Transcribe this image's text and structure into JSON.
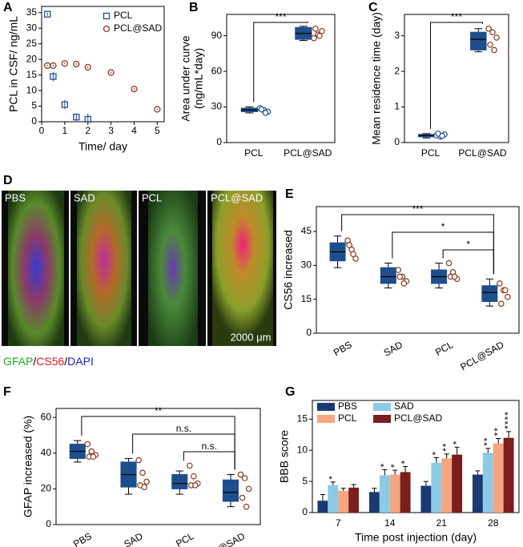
{
  "chart_data": [
    {
      "type": "scatter",
      "panel_label": "A",
      "xlabel": "Time/ day",
      "ylabel": "PCL in CSF/ ng/mL",
      "xlim": [
        0,
        5.3
      ],
      "ylim": [
        0,
        37
      ],
      "xticks": [
        0,
        1,
        2,
        3,
        4,
        5
      ],
      "yticks": [
        0,
        5,
        10,
        15,
        20,
        25,
        30,
        35
      ],
      "legend": "upper right",
      "series": [
        {
          "name": "PCL",
          "color": "#1f4e8c",
          "marker": "square",
          "x": [
            0.25,
            0.5,
            1,
            1.5,
            2
          ],
          "values": [
            34.5,
            14.5,
            5.5,
            1.5,
            0.8
          ],
          "errors": [
            0.5,
            1.5,
            1.5,
            1.2,
            1.8
          ]
        },
        {
          "name": "PCL@SAD",
          "color": "#8b3a1e",
          "marker": "circle",
          "x": [
            0.25,
            0.5,
            1,
            1.5,
            2,
            3,
            4,
            5
          ],
          "values": [
            18,
            18,
            18.7,
            18.5,
            17.5,
            15.8,
            10.5,
            4
          ],
          "errors": [
            0.3,
            0.3,
            0.3,
            0.3,
            0.3,
            0.3,
            0.3,
            0.3
          ]
        }
      ]
    },
    {
      "type": "box",
      "panel_label": "B",
      "ylabel": [
        "Area under curve",
        "(ng/mL*day)"
      ],
      "categories": [
        "PCL",
        "PCL@SAD"
      ],
      "ylim": [
        0,
        108
      ],
      "yticks": [
        0,
        30,
        60,
        90
      ],
      "color": "#1f4e8c",
      "boxes": [
        {
          "q1": 26,
          "median": 27.5,
          "q3": 29,
          "whislo": 25,
          "whishi": 30,
          "points": [
            29,
            27.5,
            26,
            28,
            25
          ],
          "point_color": "#1f4e8c"
        },
        {
          "q1": 87,
          "median": 92,
          "q3": 97,
          "whislo": 86,
          "whishi": 98,
          "points": [
            88,
            91,
            94,
            96,
            90
          ],
          "point_color": "#8b3a1e"
        }
      ],
      "significance": [
        {
          "pair": [
            "PCL",
            "PCL@SAD"
          ],
          "label": "***"
        }
      ]
    },
    {
      "type": "box",
      "panel_label": "C",
      "ylabel": "Mean residence time (day)",
      "categories": [
        "PCL",
        "PCL@SAD"
      ],
      "ylim": [
        0,
        3.6
      ],
      "yticks": [
        0,
        1,
        2,
        3
      ],
      "color": "#1f4e8c",
      "boxes": [
        {
          "q1": 0.16,
          "median": 0.2,
          "q3": 0.23,
          "whislo": 0.13,
          "whishi": 0.25,
          "points": [
            0.2,
            0.17,
            0.23,
            0.25,
            0.19
          ],
          "point_color": "#1f4e8c"
        },
        {
          "q1": 2.6,
          "median": 2.9,
          "q3": 3.1,
          "whislo": 2.55,
          "whishi": 3.2,
          "points": [
            3.2,
            3.1,
            2.95,
            2.75,
            2.6
          ],
          "point_color": "#8b3a1e"
        }
      ],
      "significance": [
        {
          "pair": [
            "PCL",
            "PCL@SAD"
          ],
          "label": "***"
        }
      ]
    },
    {
      "type": "micrograph",
      "panel_label": "D",
      "panels": [
        "PBS",
        "SAD",
        "PCL",
        "PCL@SAD"
      ],
      "scale_bar": "2000 μm",
      "separator": "/",
      "stains": [
        {
          "name": "GFAP",
          "color": "#1faa1f"
        },
        {
          "name": "CS56",
          "color": "#e01b1b"
        },
        {
          "name": "DAPI",
          "color": "#1b1bd0"
        }
      ]
    },
    {
      "type": "box",
      "panel_label": "E",
      "ylabel": "CS56 increased",
      "categories": [
        "PBS",
        "SAD",
        "PCL",
        "PCL@SAD"
      ],
      "rotate_xticks": true,
      "ylim": [
        0,
        56
      ],
      "yticks": [
        0,
        15,
        30,
        45
      ],
      "color": "#1f4e8c",
      "boxes": [
        {
          "q1": 32,
          "median": 36,
          "q3": 40,
          "whislo": 29,
          "whishi": 43,
          "points": [
            41,
            37,
            33,
            39,
            35
          ],
          "point_color": "#8b3a1e"
        },
        {
          "q1": 22,
          "median": 25,
          "q3": 29,
          "whislo": 20,
          "whishi": 31,
          "points": [
            28,
            25,
            23,
            25,
            22
          ],
          "point_color": "#8b3a1e"
        },
        {
          "q1": 22,
          "median": 25,
          "q3": 28,
          "whislo": 20,
          "whishi": 31,
          "points": [
            31,
            27,
            24,
            25,
            25
          ],
          "point_color": "#8b3a1e"
        },
        {
          "q1": 14,
          "median": 18,
          "q3": 21,
          "whislo": 12,
          "whishi": 24,
          "points": [
            22,
            19,
            16,
            13,
            19
          ],
          "point_color": "#8b3a1e"
        }
      ],
      "significance": [
        {
          "pair": [
            "PBS",
            "PCL@SAD"
          ],
          "label": "***"
        },
        {
          "pair": [
            "SAD",
            "PCL@SAD"
          ],
          "label": "*"
        },
        {
          "pair": [
            "PCL",
            "PCL@SAD"
          ],
          "label": "*"
        }
      ]
    },
    {
      "type": "box",
      "panel_label": "F",
      "ylabel": "GFAP increased (%)",
      "categories": [
        "PBS",
        "SAD",
        "PCL",
        "PCL@SAD"
      ],
      "rotate_xticks": true,
      "ylim": [
        0,
        65
      ],
      "yticks": [
        0,
        20,
        40,
        60
      ],
      "color": "#1f4e8c",
      "boxes": [
        {
          "q1": 37,
          "median": 41,
          "q3": 45,
          "whislo": 35,
          "whishi": 47,
          "points": [
            45,
            41,
            39,
            38,
            38
          ],
          "point_color": "#8b3a1e"
        },
        {
          "q1": 21,
          "median": 28,
          "q3": 35,
          "whislo": 17,
          "whishi": 37,
          "points": [
            36,
            29,
            24,
            22,
            21
          ],
          "point_color": "#8b3a1e"
        },
        {
          "q1": 20,
          "median": 23,
          "q3": 28,
          "whislo": 17,
          "whishi": 30,
          "points": [
            33,
            27,
            23,
            22,
            22
          ],
          "point_color": "#8b3a1e"
        },
        {
          "q1": 13,
          "median": 18,
          "q3": 25,
          "whislo": 10,
          "whishi": 28,
          "points": [
            28,
            26,
            20,
            15,
            10
          ],
          "point_color": "#8b3a1e"
        }
      ],
      "significance": [
        {
          "pair": [
            "PBS",
            "PCL@SAD"
          ],
          "label": "**"
        },
        {
          "pair": [
            "SAD",
            "PCL@SAD"
          ],
          "label": "n.s."
        },
        {
          "pair": [
            "PCL",
            "PCL@SAD"
          ],
          "label": "n.s."
        }
      ]
    },
    {
      "type": "bar",
      "panel_label": "G",
      "ylabel": "BBB score",
      "xlabel": "Time post injection (day)",
      "categories": [
        "7",
        "14",
        "21",
        "28"
      ],
      "ylim": [
        0,
        18
      ],
      "yticks": [
        0,
        5,
        10,
        15
      ],
      "legend": "upper left",
      "series": [
        {
          "name": "PBS",
          "color": "#1a3a73",
          "values": [
            1.9,
            3.3,
            4.3,
            6.1
          ],
          "errors": [
            1.0,
            0.6,
            0.7,
            0.6
          ],
          "stars": [
            null,
            null,
            null,
            null
          ]
        },
        {
          "name": "SAD",
          "color": "#8ecae6",
          "values": [
            4.4,
            6.0,
            8.0,
            9.6
          ],
          "errors": [
            0.5,
            0.9,
            0.8,
            0.7
          ],
          "stars": [
            "*",
            "*",
            "*",
            "**"
          ]
        },
        {
          "name": "PCL",
          "color": "#f4a582",
          "values": [
            3.5,
            6.1,
            8.7,
            11.1
          ],
          "errors": [
            0.4,
            0.7,
            0.7,
            0.8
          ],
          "stars": [
            null,
            "*",
            "**",
            "**"
          ]
        },
        {
          "name": "PCL@SAD",
          "color": "#7b1e1e",
          "values": [
            4.0,
            6.5,
            9.3,
            12.0
          ],
          "errors": [
            0.5,
            0.9,
            1.2,
            1.0
          ],
          "stars": [
            null,
            "*",
            "*",
            "****"
          ]
        }
      ]
    }
  ]
}
